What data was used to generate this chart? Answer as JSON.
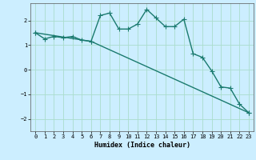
{
  "xlabel": "Humidex (Indice chaleur)",
  "ylabel": "",
  "background_color": "#cceeff",
  "grid_color": "#aaddcc",
  "line_color": "#1a7a6e",
  "ylim": [
    -2.5,
    2.7
  ],
  "xlim": [
    -0.5,
    23.5
  ],
  "yticks": [
    -2,
    -1,
    0,
    1,
    2
  ],
  "xticks": [
    0,
    1,
    2,
    3,
    4,
    5,
    6,
    7,
    8,
    9,
    10,
    11,
    12,
    13,
    14,
    15,
    16,
    17,
    18,
    19,
    20,
    21,
    22,
    23
  ],
  "line1_x": [
    0,
    1,
    2,
    3,
    4,
    5,
    6,
    7,
    8,
    9,
    10,
    11,
    12,
    13,
    14,
    15,
    16,
    17,
    18,
    19,
    20,
    21,
    22,
    23
  ],
  "line1_y": [
    1.5,
    1.25,
    1.35,
    1.3,
    1.35,
    1.2,
    1.15,
    2.2,
    2.3,
    1.65,
    1.65,
    1.85,
    2.45,
    2.1,
    1.75,
    1.75,
    2.05,
    0.65,
    0.5,
    -0.05,
    -0.7,
    -0.75,
    -1.4,
    -1.75
  ],
  "line2_x": [
    0,
    6,
    23
  ],
  "line2_y": [
    1.5,
    1.15,
    -1.75
  ],
  "marker": "+",
  "markersize": 4.0,
  "linewidth": 1.0
}
